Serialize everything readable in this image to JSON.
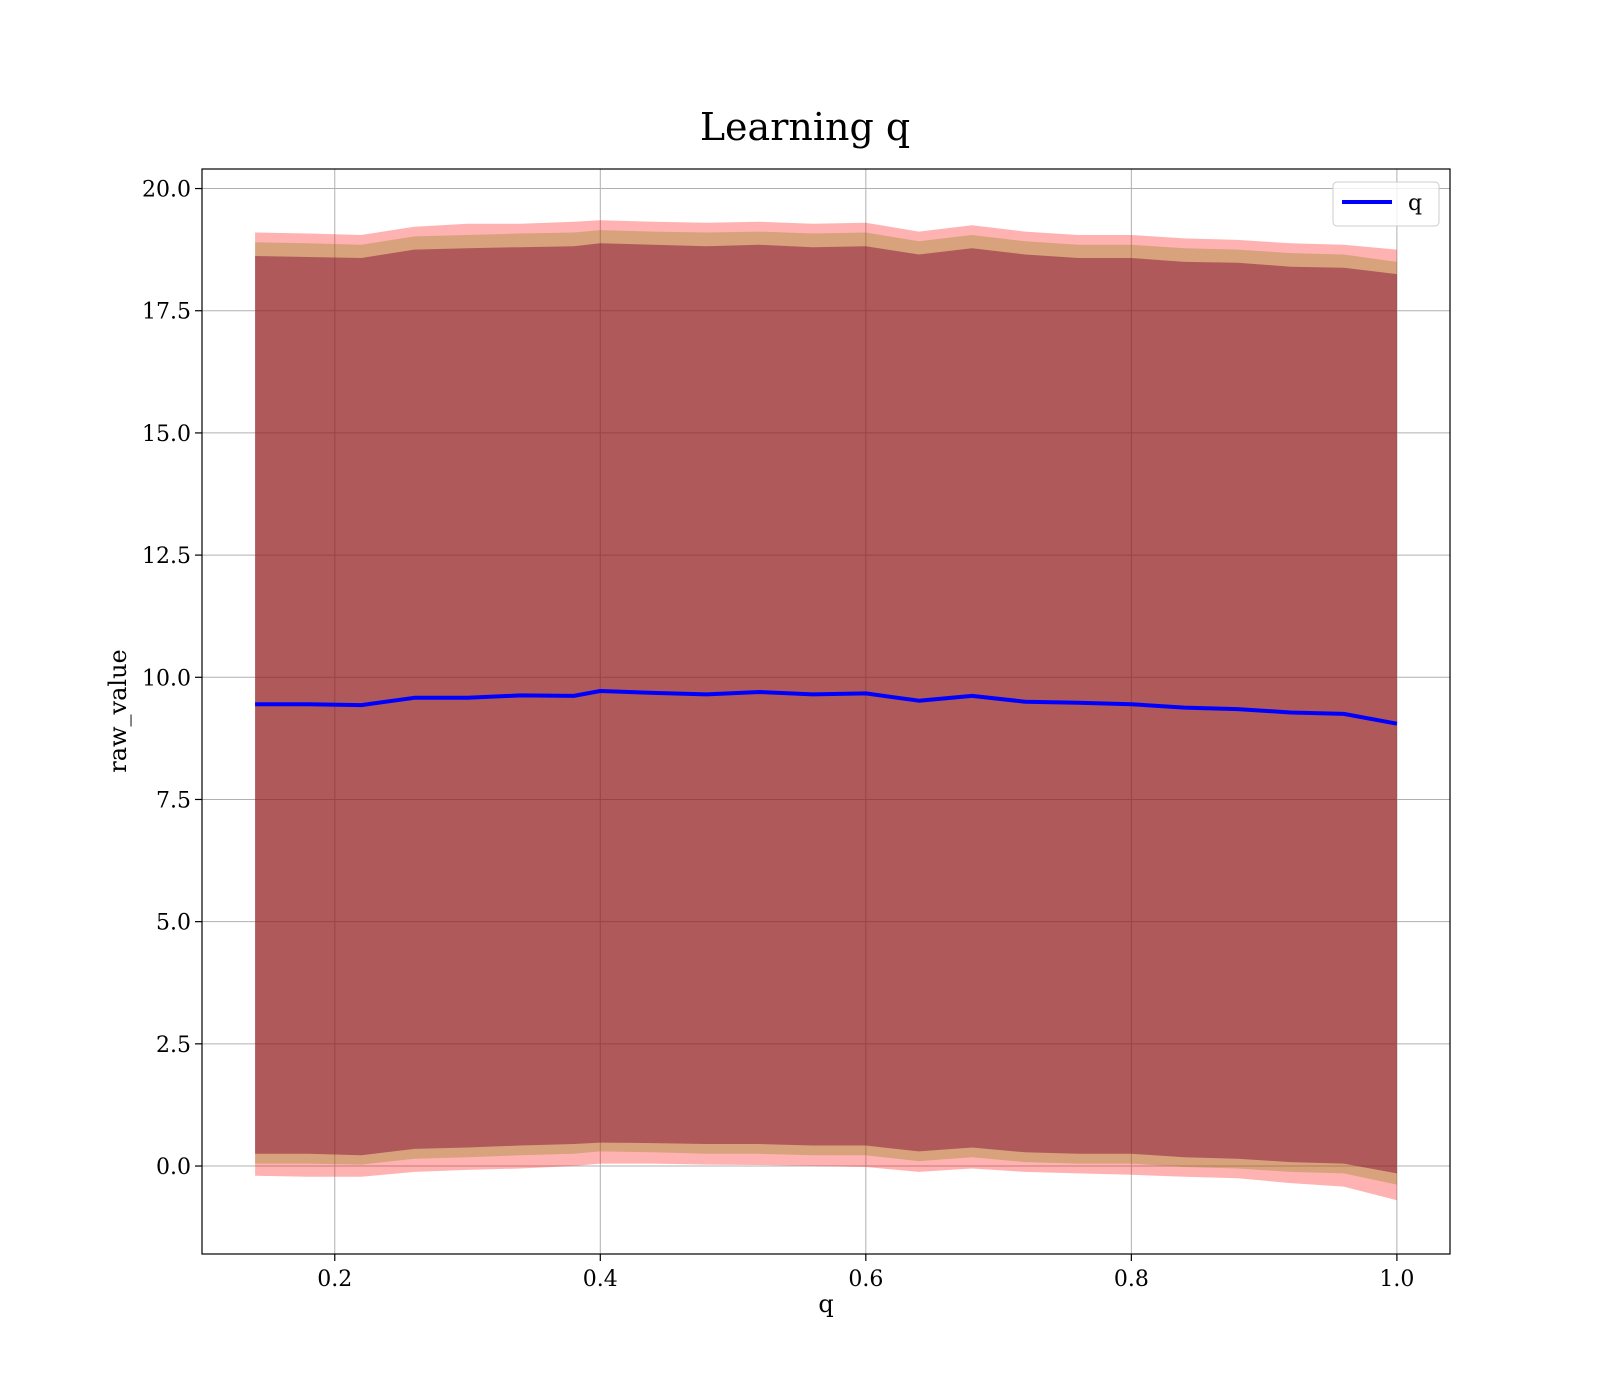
{
  "chart_data": {
    "type": "area",
    "title": "Learning q",
    "xlabel": "q",
    "ylabel": "raw_value",
    "xlim": [
      0.1,
      1.04
    ],
    "ylim": [
      -1.8,
      20.4
    ],
    "xticks": [
      0.2,
      0.4,
      0.6,
      0.8,
      1.0
    ],
    "xtick_labels": [
      "0.2",
      "0.4",
      "0.6",
      "0.8",
      "1.0"
    ],
    "yticks": [
      0.0,
      2.5,
      5.0,
      7.5,
      10.0,
      12.5,
      15.0,
      17.5,
      20.0
    ],
    "ytick_labels": [
      "0.0",
      "2.5",
      "5.0",
      "7.5",
      "10.0",
      "12.5",
      "15.0",
      "17.5",
      "20.0"
    ],
    "grid": true,
    "legend_position": "top-right",
    "x": [
      0.14,
      0.18,
      0.22,
      0.26,
      0.3,
      0.34,
      0.38,
      0.4,
      0.44,
      0.48,
      0.52,
      0.56,
      0.6,
      0.64,
      0.68,
      0.72,
      0.76,
      0.8,
      0.84,
      0.88,
      0.92,
      0.96,
      1.0
    ],
    "series": [
      {
        "name": "q",
        "color": "#0000ff",
        "values": [
          9.45,
          9.45,
          9.43,
          9.58,
          9.58,
          9.63,
          9.62,
          9.72,
          9.68,
          9.65,
          9.7,
          9.65,
          9.67,
          9.52,
          9.62,
          9.5,
          9.48,
          9.45,
          9.38,
          9.35,
          9.28,
          9.25,
          9.05
        ]
      }
    ],
    "bands": [
      {
        "color": "#ff0000",
        "opacity": 0.3,
        "lower": [
          -0.2,
          -0.22,
          -0.22,
          -0.12,
          -0.08,
          -0.05,
          0.0,
          0.05,
          0.05,
          0.03,
          0.02,
          0.0,
          -0.02,
          -0.12,
          -0.05,
          -0.12,
          -0.15,
          -0.18,
          -0.22,
          -0.25,
          -0.35,
          -0.42,
          -0.7
        ],
        "upper": [
          19.1,
          19.08,
          19.05,
          19.22,
          19.28,
          19.28,
          19.32,
          19.35,
          19.32,
          19.3,
          19.32,
          19.28,
          19.3,
          19.12,
          19.25,
          19.12,
          19.05,
          19.05,
          18.98,
          18.95,
          18.88,
          18.85,
          18.75
        ]
      },
      {
        "color": "#7f7f00",
        "opacity": 0.3,
        "lower": [
          0.05,
          0.05,
          0.03,
          0.15,
          0.18,
          0.22,
          0.25,
          0.3,
          0.28,
          0.25,
          0.25,
          0.22,
          0.22,
          0.1,
          0.18,
          0.08,
          0.05,
          0.05,
          -0.02,
          -0.05,
          -0.12,
          -0.15,
          -0.38
        ],
        "upper": [
          18.9,
          18.88,
          18.85,
          19.02,
          19.05,
          19.08,
          19.1,
          19.15,
          19.12,
          19.1,
          19.12,
          19.08,
          19.1,
          18.92,
          19.05,
          18.92,
          18.85,
          18.85,
          18.78,
          18.75,
          18.68,
          18.65,
          18.5
        ]
      },
      {
        "color": "#7f0030",
        "opacity": 0.45,
        "lower": [
          0.25,
          0.25,
          0.22,
          0.35,
          0.38,
          0.42,
          0.45,
          0.48,
          0.47,
          0.45,
          0.45,
          0.42,
          0.42,
          0.3,
          0.38,
          0.28,
          0.25,
          0.25,
          0.18,
          0.15,
          0.08,
          0.05,
          -0.15
        ],
        "upper": [
          18.62,
          18.6,
          18.58,
          18.75,
          18.78,
          18.8,
          18.82,
          18.88,
          18.85,
          18.82,
          18.85,
          18.8,
          18.82,
          18.65,
          18.78,
          18.65,
          18.58,
          18.58,
          18.5,
          18.48,
          18.4,
          18.38,
          18.25
        ]
      }
    ]
  }
}
